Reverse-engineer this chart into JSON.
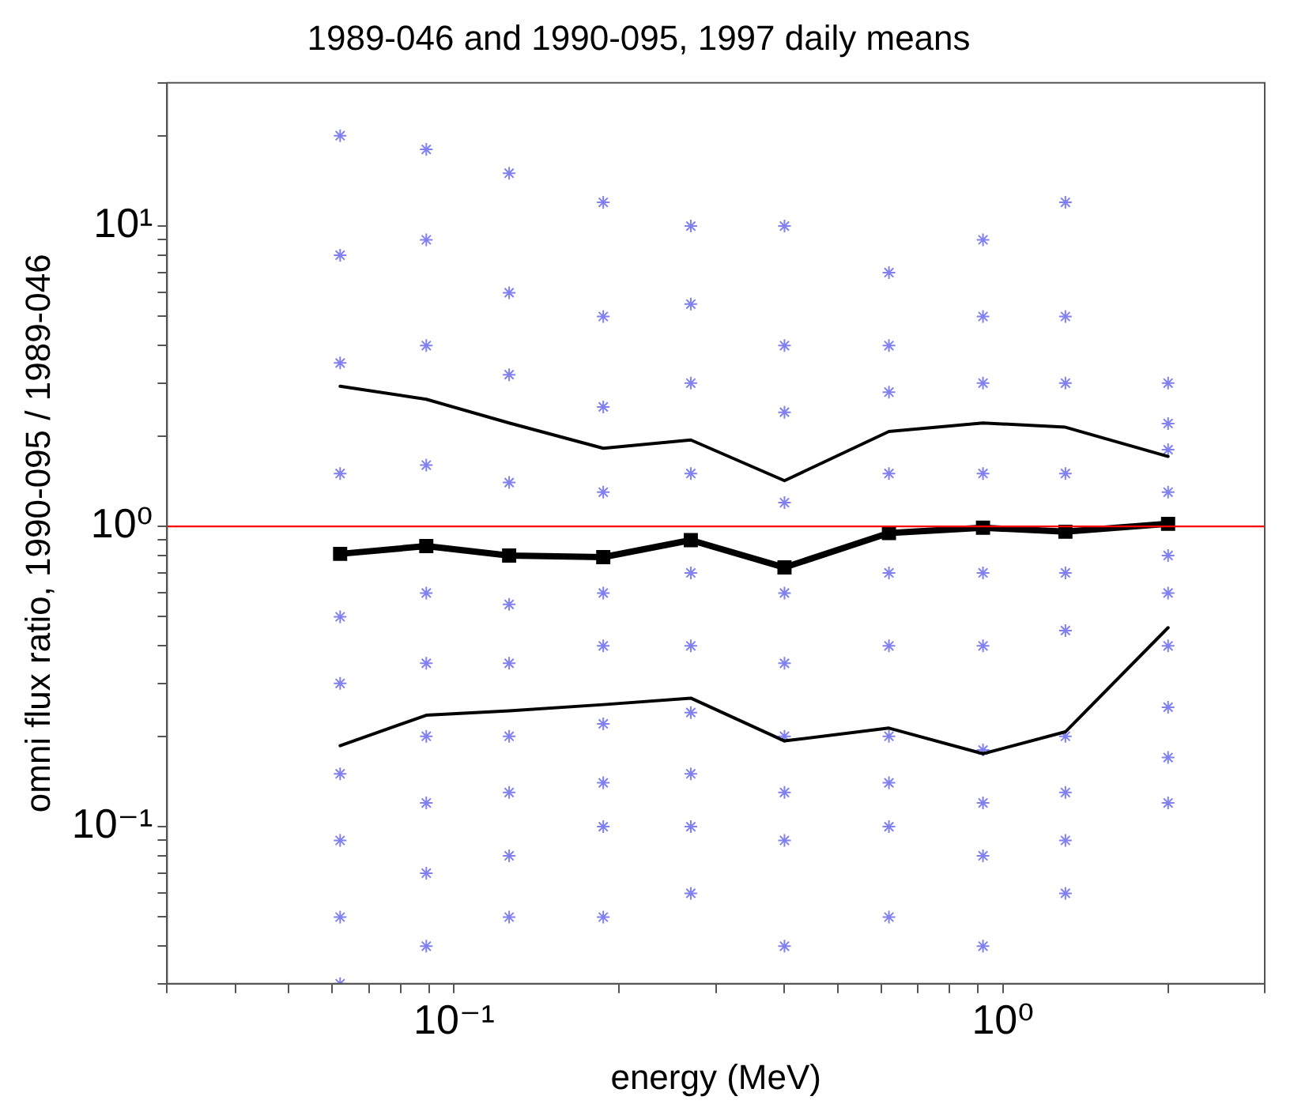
{
  "chart_data": {
    "type": "line",
    "title": "1989-046 and 1990-095, 1997 daily means",
    "xlabel": "energy (MeV)",
    "ylabel": "omni flux ratio, 1990-095 / 1989-046",
    "log": "xy",
    "grid": false,
    "legend": false,
    "line_style": "solid",
    "x": [
      0.062,
      0.089,
      0.126,
      0.187,
      0.27,
      0.4,
      0.62,
      0.92,
      1.3,
      2.0
    ],
    "xlim": [
      0.03,
      3
    ],
    "ylim": [
      0.03,
      30
    ],
    "xticks": [
      {
        "value": 0.03,
        "label": null
      },
      {
        "value": 0.04,
        "label": null
      },
      {
        "value": 0.05,
        "label": null
      },
      {
        "value": 0.06,
        "label": null
      },
      {
        "value": 0.07,
        "label": null
      },
      {
        "value": 0.08,
        "label": null
      },
      {
        "value": 0.09,
        "label": null
      },
      {
        "value": 0.1,
        "label": "10⁻¹"
      },
      {
        "value": 0.2,
        "label": null
      },
      {
        "value": 0.3,
        "label": null
      },
      {
        "value": 0.4,
        "label": null
      },
      {
        "value": 0.5,
        "label": null
      },
      {
        "value": 0.6,
        "label": null
      },
      {
        "value": 0.7,
        "label": null
      },
      {
        "value": 0.8,
        "label": null
      },
      {
        "value": 0.9,
        "label": null
      },
      {
        "value": 1,
        "label": "10⁰"
      },
      {
        "value": 2,
        "label": null
      },
      {
        "value": 3,
        "label": null
      }
    ],
    "yticks": [
      {
        "value": 0.03,
        "label": null
      },
      {
        "value": 0.04,
        "label": null
      },
      {
        "value": 0.05,
        "label": null
      },
      {
        "value": 0.06,
        "label": null
      },
      {
        "value": 0.07,
        "label": null
      },
      {
        "value": 0.08,
        "label": null
      },
      {
        "value": 0.09,
        "label": null
      },
      {
        "value": 0.1,
        "label": "10⁻¹"
      },
      {
        "value": 0.2,
        "label": null
      },
      {
        "value": 0.3,
        "label": null
      },
      {
        "value": 0.4,
        "label": null
      },
      {
        "value": 0.5,
        "label": null
      },
      {
        "value": 0.6,
        "label": null
      },
      {
        "value": 0.7,
        "label": null
      },
      {
        "value": 0.8,
        "label": null
      },
      {
        "value": 0.9,
        "label": null
      },
      {
        "value": 1,
        "label": "10⁰"
      },
      {
        "value": 2,
        "label": null
      },
      {
        "value": 3,
        "label": null
      },
      {
        "value": 4,
        "label": null
      },
      {
        "value": 5,
        "label": null
      },
      {
        "value": 6,
        "label": null
      },
      {
        "value": 7,
        "label": null
      },
      {
        "value": 8,
        "label": null
      },
      {
        "value": 9,
        "label": null
      },
      {
        "value": 10,
        "label": "10¹"
      },
      {
        "value": 20,
        "label": null
      },
      {
        "value": 30,
        "label": null
      }
    ],
    "ref_lines": [
      {
        "axis": "y",
        "value": 1,
        "color": "#ff0000"
      }
    ],
    "series": [
      {
        "type": "scatter",
        "marker": "cross",
        "color": "#8080f0",
        "x": [
          0.062,
          0.062,
          0.062,
          0.062,
          0.062,
          0.062,
          0.062,
          0.062,
          0.062,
          0.062,
          0.089,
          0.089,
          0.089,
          0.089,
          0.089,
          0.089,
          0.089,
          0.089,
          0.089,
          0.089,
          0.126,
          0.126,
          0.126,
          0.126,
          0.126,
          0.126,
          0.126,
          0.126,
          0.126,
          0.126,
          0.187,
          0.187,
          0.187,
          0.187,
          0.187,
          0.187,
          0.187,
          0.187,
          0.187,
          0.187,
          0.27,
          0.27,
          0.27,
          0.27,
          0.27,
          0.27,
          0.27,
          0.27,
          0.27,
          0.27,
          0.4,
          0.4,
          0.4,
          0.4,
          0.4,
          0.4,
          0.4,
          0.4,
          0.4,
          0.4,
          0.62,
          0.62,
          0.62,
          0.62,
          0.62,
          0.62,
          0.62,
          0.62,
          0.62,
          0.62,
          0.92,
          0.92,
          0.92,
          0.92,
          0.92,
          0.92,
          0.92,
          0.92,
          0.92,
          0.92,
          1.3,
          1.3,
          1.3,
          1.3,
          1.3,
          1.3,
          1.3,
          1.3,
          1.3,
          1.3,
          2.0,
          2.0,
          2.0,
          2.0,
          2.0,
          2.0,
          2.0,
          2.0,
          2.0,
          2.0
        ],
        "values": [
          0.03,
          0.05,
          0.09,
          0.15,
          0.3,
          0.5,
          1.5,
          3.5,
          8,
          20,
          0.04,
          0.07,
          0.12,
          0.2,
          0.35,
          0.6,
          1.6,
          4,
          9,
          18,
          0.05,
          0.08,
          0.13,
          0.2,
          0.35,
          0.55,
          1.4,
          3.2,
          6,
          15,
          0.05,
          0.1,
          0.14,
          0.22,
          0.4,
          0.6,
          1.3,
          2.5,
          5,
          12,
          0.06,
          0.1,
          0.15,
          0.24,
          0.4,
          0.7,
          1.5,
          3,
          5.5,
          10,
          0.04,
          0.09,
          0.13,
          0.2,
          0.35,
          0.6,
          1.2,
          2.4,
          4,
          10,
          0.05,
          0.1,
          0.14,
          0.2,
          0.4,
          0.7,
          1.5,
          2.8,
          4,
          7,
          0.04,
          0.08,
          0.12,
          0.18,
          0.4,
          0.7,
          1.5,
          3,
          5,
          9,
          0.06,
          0.09,
          0.13,
          0.2,
          0.45,
          0.7,
          1.5,
          3,
          5,
          12,
          0.12,
          0.17,
          0.25,
          0.4,
          0.6,
          0.8,
          1.3,
          1.8,
          2.2,
          3
        ]
      },
      {
        "color": "#000000",
        "marker": "none",
        "values": [
          2.93,
          2.65,
          2.21,
          1.82,
          1.94,
          1.42,
          2.07,
          2.21,
          2.14,
          1.71
        ]
      },
      {
        "color": "#000000",
        "marker": "none",
        "values": [
          0.186,
          0.235,
          0.243,
          0.255,
          0.268,
          0.193,
          0.213,
          0.175,
          0.207,
          0.46
        ]
      },
      {
        "color": "#000000",
        "marker": "square",
        "values": [
          0.81,
          0.86,
          0.8,
          0.79,
          0.9,
          0.73,
          0.95,
          0.99,
          0.96,
          1.02
        ]
      }
    ]
  }
}
